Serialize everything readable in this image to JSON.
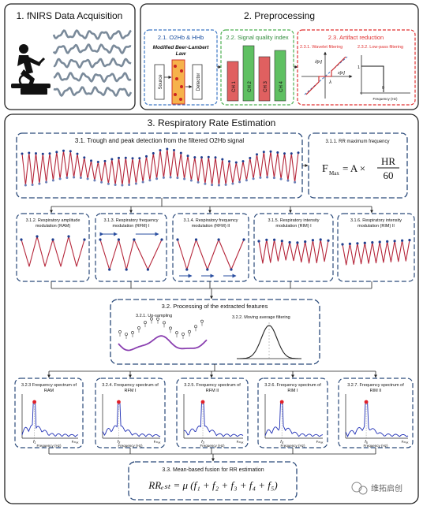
{
  "top": {
    "acquisition": {
      "title": "1. fNIRS Data Acquisition"
    },
    "preprocessing": {
      "title": "2. Preprocessing",
      "o2hb": {
        "title": "2.1. O2Hb & HHb",
        "law": "Modified Beer-Lambert Law",
        "source": "Source",
        "detector": "Detector"
      },
      "sqi": {
        "title": "2.2. Signal quality index",
        "channels": [
          "CH 1",
          "CH 2",
          "CH 3",
          "CH 4"
        ]
      },
      "artifact": {
        "title": "2.3. Artifact reduction",
        "wavelet": "2.3.1. Wavelet filtering",
        "lowpass": "2.3.2. Low-pass filtering",
        "wavelet_ylabel": "x̂[n]",
        "wavelet_xlabel": "x[n]",
        "wavelet_lambda": "λ",
        "lp_one": "1",
        "lp_zero": "0",
        "lp_xlabel": "Frequency (Hz)"
      }
    }
  },
  "rr": {
    "title": "3. Respiratory Rate Estimation",
    "trough_title": "3.1. Trough and peak detection from the filtered O2Hb signal",
    "max_freq": {
      "title": "3.1.1. RR maximum frequency",
      "lhs": "F",
      "lhs_sub": "Max",
      "eq": "= A ×",
      "num": "HR",
      "den": "60"
    },
    "modulations": [
      {
        "title_l1": "3.1.2. Respiratory amplitude",
        "title_l2": "modulation (RAM)"
      },
      {
        "title_l1": "3.1.3. Respiratory frequency",
        "title_l2": "modulation (RFM) I"
      },
      {
        "title_l1": "3.1.4. Respiratory frequency",
        "title_l2": "modulation (RFM) II"
      },
      {
        "title_l1": "3.1.5. Respiratory intensity",
        "title_l2": "modulation (RIM) I"
      },
      {
        "title_l1": "3.1.6. Respiratory intensity",
        "title_l2": "modulation (RIM) II"
      }
    ],
    "processing": {
      "title": "3.2. Processing of the extracted features",
      "upsampling": "3.2.1. Up-sampling",
      "moving_avg": "3.2.2. Moving average filtering"
    },
    "spectra": [
      {
        "title_l1": "3.2.3 Frequency spectrum of",
        "title_l2": "RAM",
        "f": "f₁",
        "fmax": "Fₘₐₓ"
      },
      {
        "title_l1": "3.2.4. Frequency spectrum of",
        "title_l2": "RFM I",
        "f": "f₂",
        "fmax": "Fₘₐₓ"
      },
      {
        "title_l1": "3.2.5. Frequency spectrum of",
        "title_l2": "RFM II",
        "f": "f₃",
        "fmax": "Fₘₐₓ"
      },
      {
        "title_l1": "3.2.6. Frequency spectrum of",
        "title_l2": "RIM I",
        "f": "f₄",
        "fmax": "Fₘₐₓ"
      },
      {
        "title_l1": "3.2.7. Frequency spectrum of",
        "title_l2": "RIM II",
        "f": "f₅",
        "fmax": "Fₘₐₓ"
      }
    ],
    "spectrum_xlabel": "Frequency (Hz)",
    "fusion": {
      "title": "3.3. Mean-based fusion for RR estimation",
      "formula": "RRₑₛₜ = μ (f₁ + f₂ + f₃ + f₄ + f₅)"
    }
  },
  "watermark": "维拓启创",
  "colors": {
    "signal": "#b5263a",
    "peak": "#1f3f8f",
    "trough": "#1f3f8f",
    "spectrum": "#1f2fb5",
    "spectrum_peak": "#e0202a",
    "acq_wave": "#7a8a9a",
    "border_blue": "#2b4a7a",
    "sqi_red": "#e06060",
    "sqi_green": "#5fc062",
    "artifact_red": "#e03030",
    "prep_blue": "#3d77c4",
    "prep_green": "#4caf50"
  }
}
